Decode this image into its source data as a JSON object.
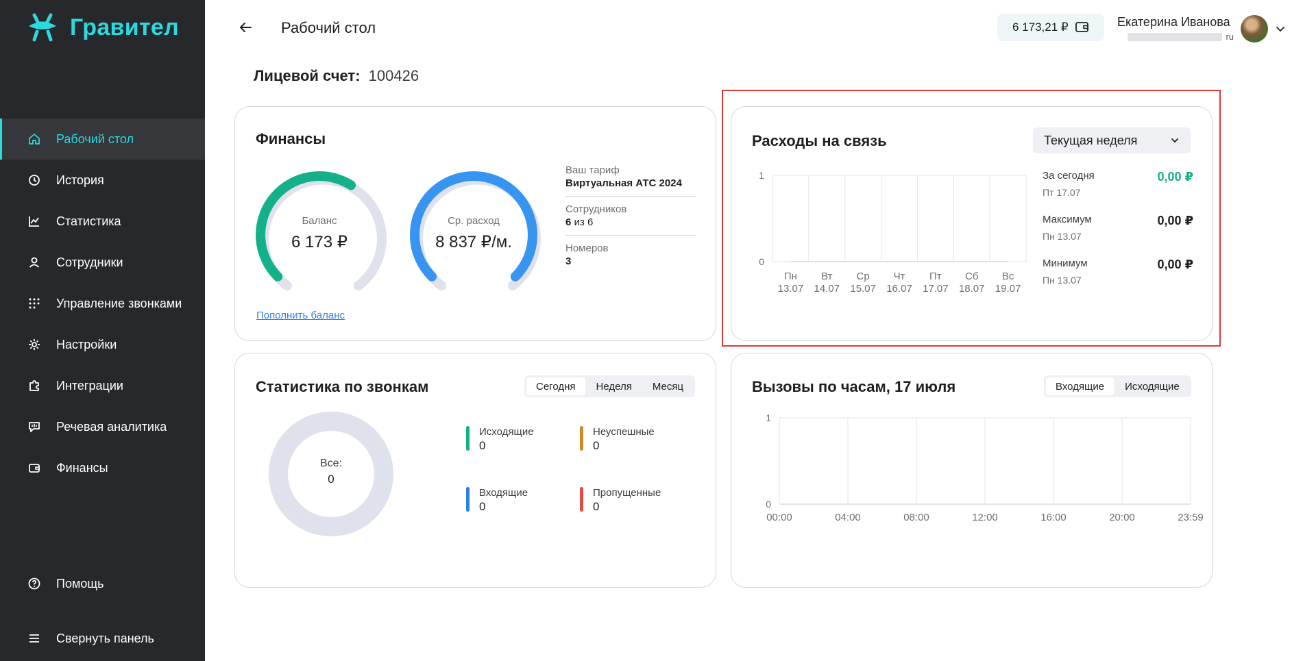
{
  "app": {
    "name": "Гравител"
  },
  "sidebar": {
    "items": [
      {
        "label": "Рабочий стол",
        "icon": "home-icon",
        "active": true
      },
      {
        "label": "История",
        "icon": "history-icon"
      },
      {
        "label": "Статистика",
        "icon": "chart-icon"
      },
      {
        "label": "Сотрудники",
        "icon": "user-icon"
      },
      {
        "label": "Управление звонками",
        "icon": "dialpad-icon"
      },
      {
        "label": "Настройки",
        "icon": "gear-icon"
      },
      {
        "label": "Интеграции",
        "icon": "puzzle-icon"
      },
      {
        "label": "Речевая аналитика",
        "icon": "speech-icon"
      },
      {
        "label": "Финансы",
        "icon": "wallet-icon"
      }
    ],
    "help": "Помощь",
    "collapse": "Свернуть панель"
  },
  "header": {
    "title": "Рабочий стол",
    "balance": "6 173,21 ₽",
    "user_name": "Екатерина Иванова",
    "user_email_suffix": "ru"
  },
  "account": {
    "label": "Лицевой счет:",
    "value": "100426"
  },
  "finance": {
    "title": "Финансы",
    "balance_label": "Баланс",
    "balance_value": "6 173 ₽",
    "balance_fill": 0.62,
    "avg_label": "Ср. расход",
    "avg_value": "8 837 ₽/м.",
    "avg_fill": 1.0,
    "tariff_label": "Ваш тариф",
    "tariff_value": "Виртуальная АТС 2024",
    "employees_label": "Сотрудников",
    "employees_count": "6",
    "employees_of": "из",
    "employees_total": "6",
    "numbers_label": "Номеров",
    "numbers_value": "3",
    "topup_link": "Пополнить баланс"
  },
  "expenses": {
    "title": "Расходы на связь",
    "period": "Текущая неделя",
    "today_label": "За сегодня",
    "today_date": "Пт 17.07",
    "today_value": "0,00 ₽",
    "max_label": "Максимум",
    "max_date": "Пн 13.07",
    "max_value": "0,00 ₽",
    "min_label": "Минимум",
    "min_date": "Пн 13.07",
    "min_value": "0,00 ₽"
  },
  "call_stats": {
    "title": "Статистика по звонкам",
    "tabs": [
      "Сегодня",
      "Неделя",
      "Месяц"
    ],
    "all_label": "Все:",
    "all_value": "0",
    "outgoing_label": "Исходящие",
    "outgoing_value": "0",
    "failed_label": "Неуспешные",
    "failed_value": "0",
    "incoming_label": "Входящие",
    "incoming_value": "0",
    "missed_label": "Пропущенные",
    "missed_value": "0",
    "colors": {
      "outgoing": "#14b08a",
      "failed": "#d08a2a",
      "incoming": "#2f7ee6",
      "missed": "#e04c47"
    }
  },
  "hourly": {
    "title": "Вызовы по часам, 17 июля",
    "tabs": [
      "Входящие",
      "Исходящие"
    ]
  },
  "chart_data": [
    {
      "type": "line",
      "categories": [
        "Пн\n13.07",
        "Вт\n14.07",
        "Ср\n15.07",
        "Чт\n16.07",
        "Пт\n17.07",
        "Сб\n18.07",
        "Вс\n19.07"
      ],
      "series": [
        {
          "values": [
            0,
            0,
            0,
            0,
            0,
            0,
            0
          ]
        }
      ],
      "ylim": [
        0,
        1
      ],
      "yticks": [
        "1",
        "0"
      ],
      "grid": true
    },
    {
      "type": "line",
      "categories": [
        "00:00",
        "04:00",
        "08:00",
        "12:00",
        "16:00",
        "20:00",
        "23:59"
      ],
      "series": [
        {
          "values": [
            0,
            0,
            0,
            0,
            0,
            0,
            0
          ]
        }
      ],
      "ylim": [
        0,
        1
      ],
      "yticks": [
        "1",
        "0"
      ],
      "grid": true
    }
  ]
}
